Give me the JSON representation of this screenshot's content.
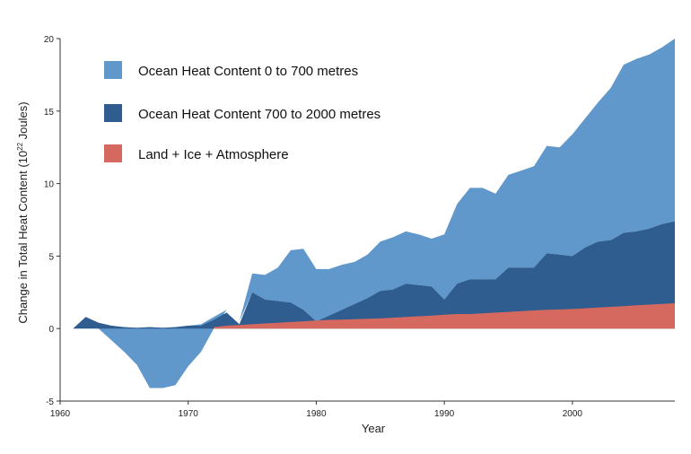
{
  "chart_data": {
    "type": "area",
    "stacked": true,
    "title": "",
    "xlabel": "Year",
    "ylabel": "Change in Total Heat Content (10²² Joules)",
    "ylabel_parts": {
      "main": "Change in Total Heat Content (10",
      "sup": "22",
      "end": " Joules)"
    },
    "xlim": [
      1960,
      2008
    ],
    "ylim": [
      -5,
      20
    ],
    "xticks": [
      1960,
      1970,
      1980,
      1990,
      2000
    ],
    "yticks": [
      -5,
      0,
      5,
      10,
      15,
      20
    ],
    "grid": false,
    "legend_position": "top-left",
    "series": [
      {
        "name": "Land + Ice + Atmosphere",
        "color": "#d5695f",
        "x": [
          1972,
          1973,
          1974,
          1975,
          1976,
          1977,
          1978,
          1979,
          1980,
          1981,
          1982,
          1983,
          1984,
          1985,
          1986,
          1987,
          1988,
          1989,
          1990,
          1991,
          1992,
          1993,
          1994,
          1995,
          1996,
          1997,
          1998,
          1999,
          2000,
          2001,
          2002,
          2003,
          2004,
          2005,
          2006,
          2007,
          2008
        ],
        "y": [
          0.1,
          0.2,
          0.25,
          0.3,
          0.35,
          0.4,
          0.45,
          0.5,
          0.55,
          0.6,
          0.62,
          0.65,
          0.68,
          0.7,
          0.75,
          0.8,
          0.85,
          0.9,
          0.95,
          1.0,
          1.0,
          1.05,
          1.1,
          1.15,
          1.2,
          1.25,
          1.3,
          1.32,
          1.35,
          1.4,
          1.45,
          1.5,
          1.55,
          1.6,
          1.65,
          1.7,
          1.75
        ]
      },
      {
        "name": "Ocean Heat Content 700 to 2000 metres",
        "color": "#2f5d8f",
        "x": [
          1961,
          1962,
          1963,
          1964,
          1965,
          1966,
          1967,
          1968,
          1969,
          1970,
          1971,
          1972,
          1973,
          1974,
          1975,
          1976,
          1977,
          1978,
          1979,
          1980,
          1981,
          1982,
          1983,
          1984,
          1985,
          1986,
          1987,
          1988,
          1989,
          1990,
          1991,
          1992,
          1993,
          1994,
          1995,
          1996,
          1997,
          1998,
          1999,
          2000,
          2001,
          2002,
          2003,
          2004,
          2005,
          2006,
          2007,
          2008
        ],
        "top": [
          0.0,
          0.8,
          0.4,
          0.2,
          0.1,
          0.05,
          0.1,
          0.05,
          0.1,
          0.2,
          0.2,
          0.6,
          1.1,
          0.3,
          2.5,
          2.0,
          1.9,
          1.8,
          1.3,
          0.5,
          0.9,
          1.3,
          1.7,
          2.1,
          2.6,
          2.7,
          3.1,
          3.0,
          2.9,
          2.0,
          3.1,
          3.4,
          3.4,
          3.4,
          4.2,
          4.2,
          4.2,
          5.2,
          5.1,
          5.0,
          5.6,
          6.0,
          6.1,
          6.6,
          6.7,
          6.9,
          7.2,
          7.4
        ]
      },
      {
        "name": "Ocean Heat Content 0 to 700 metres",
        "color": "#6098cc",
        "x": [
          1961,
          1962,
          1963,
          1964,
          1965,
          1966,
          1967,
          1968,
          1969,
          1970,
          1971,
          1972,
          1973,
          1974,
          1975,
          1976,
          1977,
          1978,
          1979,
          1980,
          1981,
          1982,
          1983,
          1984,
          1985,
          1986,
          1987,
          1988,
          1989,
          1990,
          1991,
          1992,
          1993,
          1994,
          1995,
          1996,
          1997,
          1998,
          1999,
          2000,
          2001,
          2002,
          2003,
          2004,
          2005,
          2006,
          2007,
          2008
        ],
        "top": [
          0.0,
          0.8,
          0.4,
          0.2,
          0.1,
          0.05,
          0.1,
          0.05,
          0.1,
          0.2,
          0.3,
          0.8,
          1.3,
          0.5,
          3.8,
          3.7,
          4.2,
          5.4,
          5.5,
          4.1,
          4.1,
          4.4,
          4.6,
          5.1,
          6.0,
          6.3,
          6.7,
          6.5,
          6.2,
          6.5,
          8.6,
          9.7,
          9.7,
          9.3,
          10.6,
          10.9,
          11.2,
          12.6,
          12.5,
          13.4,
          14.5,
          15.6,
          16.6,
          18.2,
          18.6,
          18.9,
          19.4,
          20.0
        ],
        "bottom": [
          0.0,
          0.8,
          0.0,
          -0.8,
          -1.6,
          -2.5,
          -4.1,
          -4.1,
          -3.9,
          -2.6,
          -1.6,
          0.0,
          1.3,
          0.5,
          2.5,
          2.0,
          1.9,
          1.8,
          1.3,
          0.5,
          0.9,
          1.3,
          1.7,
          2.1,
          2.6,
          2.7,
          3.1,
          3.0,
          2.9,
          2.0,
          3.1,
          3.4,
          3.4,
          3.4,
          4.2,
          4.2,
          4.2,
          5.2,
          5.1,
          5.0,
          5.6,
          6.0,
          6.1,
          6.6,
          6.7,
          6.9,
          7.2,
          7.4
        ]
      }
    ],
    "legend": [
      {
        "label": "Ocean Heat Content 0 to 700 metres",
        "color": "#6098cc"
      },
      {
        "label": "Ocean Heat Content 700 to 2000 metres",
        "color": "#2f5d8f"
      },
      {
        "label": "Land + Ice + Atmosphere",
        "color": "#d5695f"
      }
    ]
  }
}
